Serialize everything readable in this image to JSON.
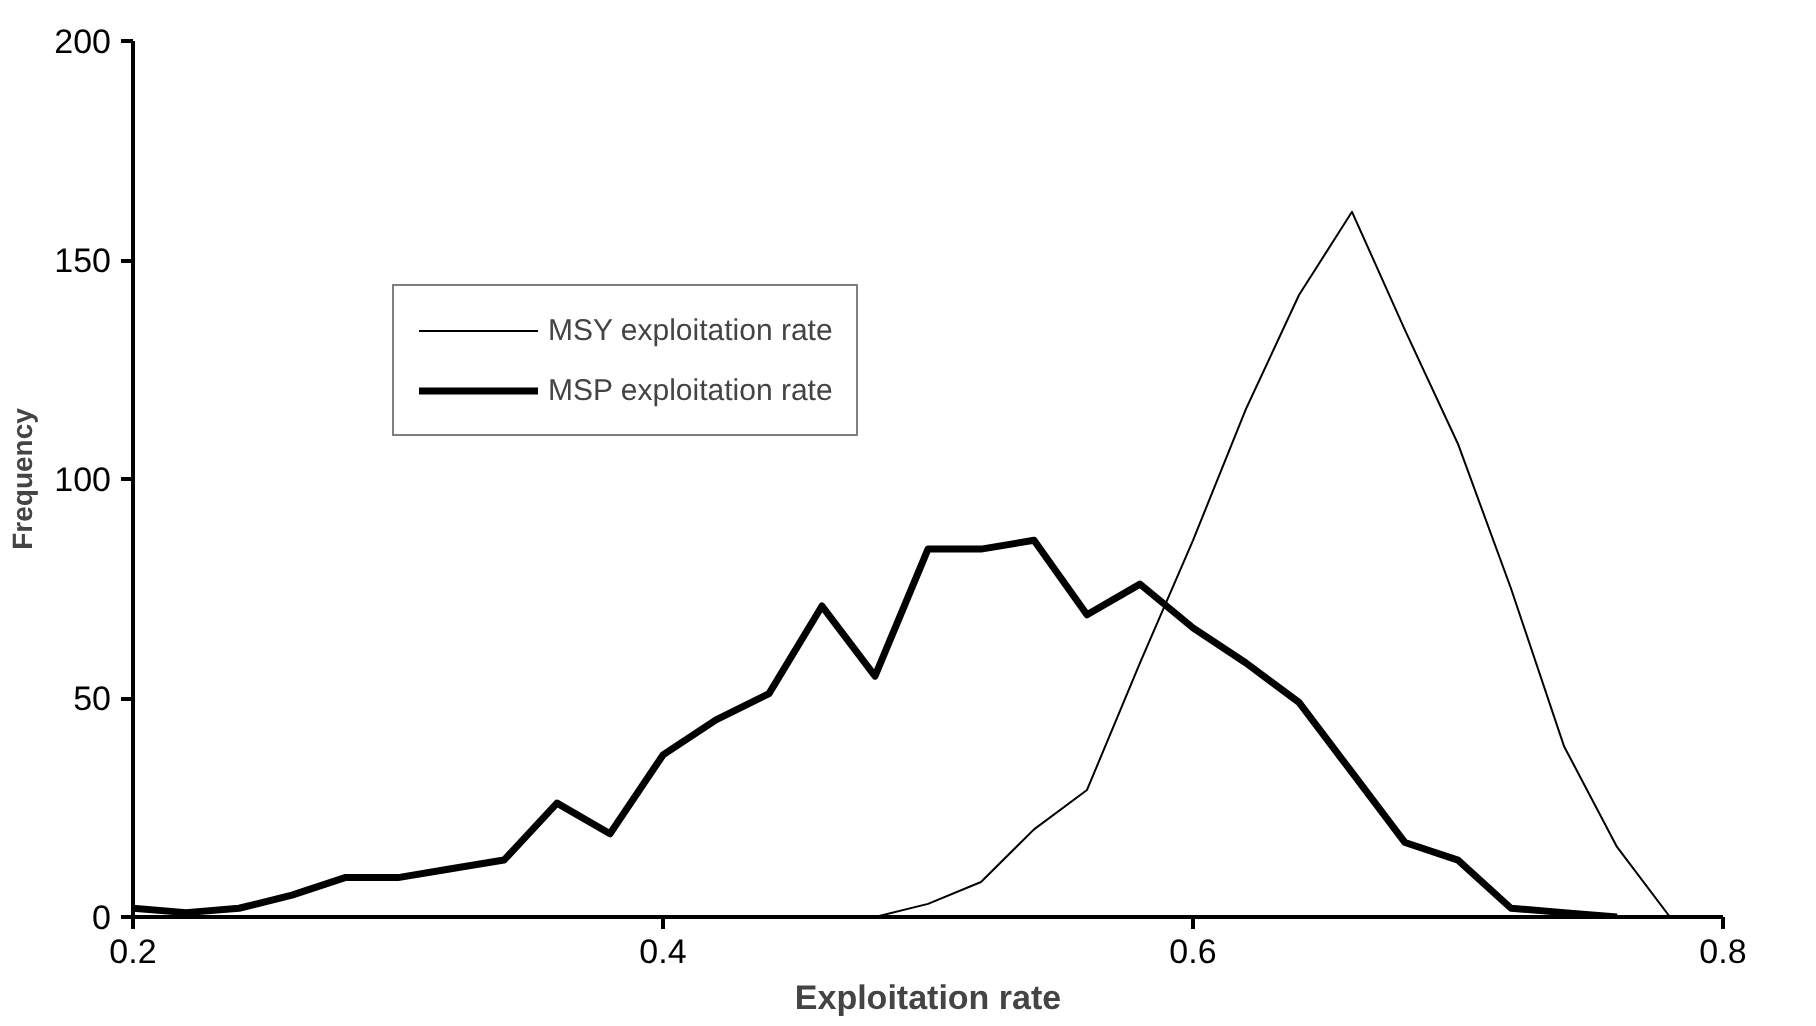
{
  "chart_data": {
    "type": "line",
    "xlabel": "Exploitation rate",
    "ylabel": "Frequency",
    "xlim": [
      0.2,
      0.8
    ],
    "ylim": [
      0,
      200
    ],
    "xticks": [
      0.2,
      0.4,
      0.6,
      0.8
    ],
    "yticks": [
      0,
      50,
      100,
      150,
      200
    ],
    "grid": false,
    "legend": "top left",
    "marker": "none",
    "line_style": "solid",
    "series": [
      {
        "name": "MSY exploitation rate",
        "color": "#000000",
        "x": [
          0.48,
          0.5,
          0.52,
          0.54,
          0.56,
          0.58,
          0.6,
          0.62,
          0.64,
          0.66,
          0.68,
          0.7,
          0.72,
          0.74,
          0.76,
          0.78
        ],
        "values": [
          0,
          3,
          8,
          20,
          29,
          58,
          86,
          116,
          142,
          161,
          134,
          108,
          75,
          39,
          16,
          0
        ]
      },
      {
        "name": "MSP exploitation rate",
        "color": "#000000",
        "x": [
          0.2,
          0.22,
          0.24,
          0.26,
          0.28,
          0.3,
          0.32,
          0.34,
          0.36,
          0.38,
          0.4,
          0.42,
          0.44,
          0.46,
          0.48,
          0.5,
          0.52,
          0.54,
          0.56,
          0.58,
          0.6,
          0.62,
          0.64,
          0.66,
          0.68,
          0.7,
          0.72,
          0.74,
          0.76
        ],
        "values": [
          2,
          1,
          2,
          5,
          9,
          9,
          11,
          13,
          26,
          19,
          37,
          45,
          51,
          71,
          55,
          84,
          84,
          86,
          69,
          76,
          66,
          58,
          49,
          33,
          17,
          13,
          2,
          1,
          0
        ]
      }
    ]
  }
}
